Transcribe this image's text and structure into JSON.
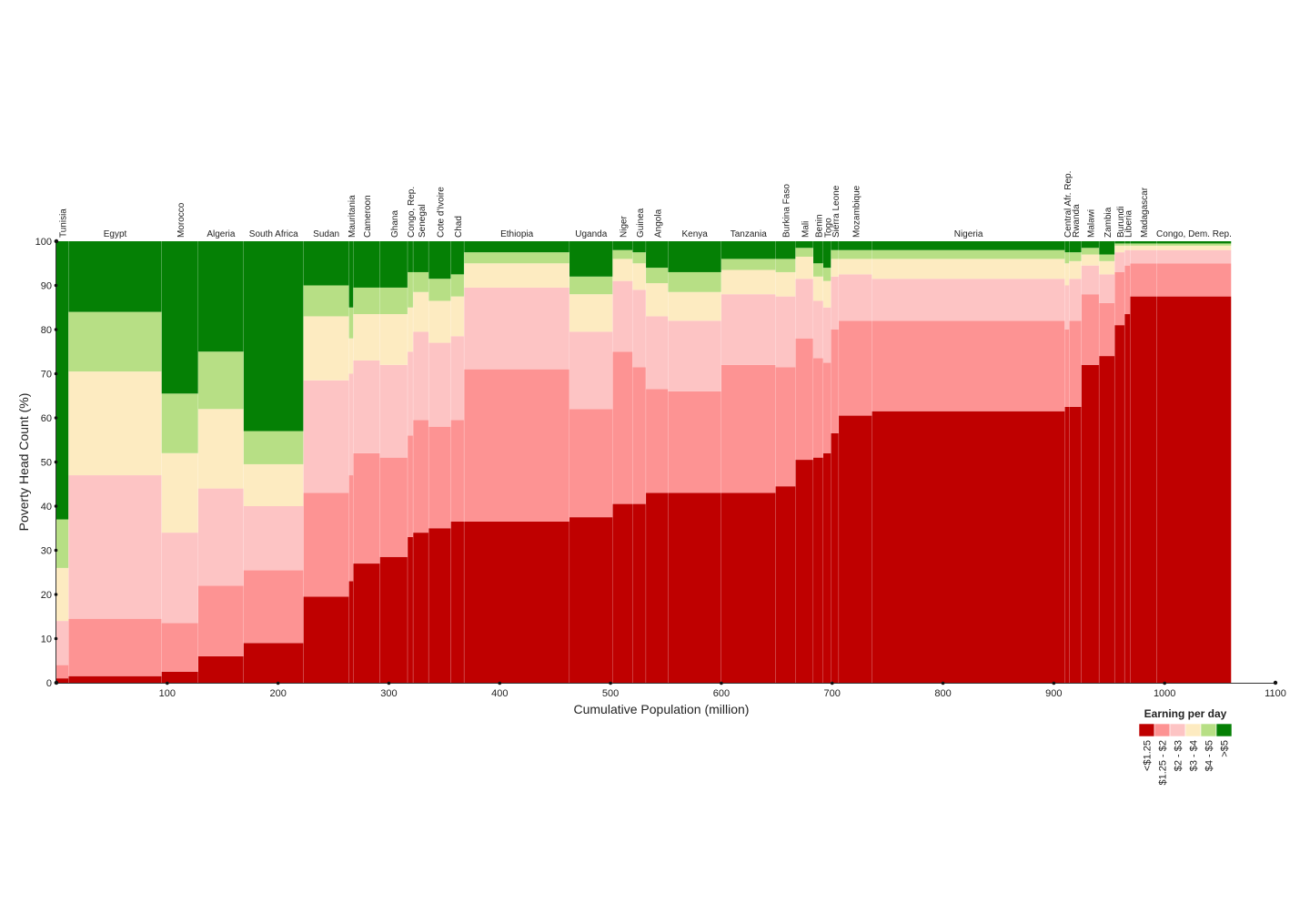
{
  "chart_data": {
    "type": "bar",
    "subtype": "variable-width stacked bar (mosaic)",
    "xlabel": "Cumulative Population (million)",
    "ylabel": "Poverty Head Count (%)",
    "xlim": [
      0,
      1100
    ],
    "ylim": [
      0,
      100
    ],
    "x_ticks": [
      100,
      200,
      300,
      400,
      500,
      600,
      700,
      800,
      900,
      1000,
      1100
    ],
    "y_ticks": [
      0,
      10,
      20,
      30,
      40,
      50,
      60,
      70,
      80,
      90,
      100
    ],
    "grid": false,
    "legend": {
      "title": "Earning per day",
      "position": "bottom-right",
      "labels": [
        "<$1.25",
        "$1.25 - $2",
        "$2 - $3",
        "$3 - $4",
        "$4 - $5",
        ">$5"
      ]
    },
    "colors": [
      "#bf0000",
      "#fd9393",
      "#fdc4c4",
      "#fdebc1",
      "#b7df85",
      "#058005"
    ],
    "series_note": "cumulative boundaries (%) of the first five earning bands; >$5 fills to 100",
    "countries": [
      {
        "name": "Tunisia",
        "start": 0,
        "end": 11,
        "cum": [
          1,
          4,
          14,
          26,
          37
        ],
        "label": "Tunisia",
        "vertical": true
      },
      {
        "name": "Egypt",
        "start": 11,
        "end": 95,
        "cum": [
          1.5,
          14.5,
          47,
          70.5,
          84
        ],
        "label": "Egypt",
        "vertical": false
      },
      {
        "name": "Morocco",
        "start": 95,
        "end": 128,
        "cum": [
          2.5,
          13.5,
          34,
          52,
          65.5
        ],
        "label": "Morocco",
        "vertical": true
      },
      {
        "name": "Algeria",
        "start": 128,
        "end": 169,
        "cum": [
          6,
          22,
          44,
          62,
          75
        ],
        "label": "Algeria",
        "vertical": false
      },
      {
        "name": "South Africa",
        "start": 169,
        "end": 223,
        "cum": [
          9,
          25.5,
          40,
          49.5,
          57
        ],
        "label": "South Africa",
        "vertical": false
      },
      {
        "name": "Sudan",
        "start": 223,
        "end": 264,
        "cum": [
          19.5,
          43,
          68.5,
          83,
          90
        ],
        "label": "Sudan",
        "vertical": false
      },
      {
        "name": "Mauritania",
        "start": 264,
        "end": 268,
        "cum": [
          23,
          47,
          70,
          78,
          85
        ],
        "label": "Mauritania",
        "vertical": true
      },
      {
        "name": "Cameroon",
        "start": 268,
        "end": 292,
        "cum": [
          27,
          52,
          73,
          83.5,
          89.5
        ],
        "label": "Cameroon",
        "vertical": true
      },
      {
        "name": "Ghana",
        "start": 292,
        "end": 317,
        "cum": [
          28.5,
          51,
          72,
          83.5,
          89.5
        ],
        "label": "Ghana",
        "vertical": true
      },
      {
        "name": "Congo, Rep.",
        "start": 317,
        "end": 322,
        "cum": [
          33,
          56,
          75,
          85,
          93
        ],
        "label": "Congo, Rep.",
        "vertical": true
      },
      {
        "name": "Senegal",
        "start": 322,
        "end": 336,
        "cum": [
          34,
          59.5,
          79.5,
          88.5,
          93
        ],
        "label": "Senegal",
        "vertical": true
      },
      {
        "name": "Cote d'Ivoire",
        "start": 336,
        "end": 356,
        "cum": [
          35,
          58,
          77,
          86.5,
          91.5
        ],
        "label": "Cote d'Ivoire",
        "vertical": true
      },
      {
        "name": "Chad",
        "start": 356,
        "end": 368,
        "cum": [
          36.5,
          59.5,
          78.5,
          87.5,
          92.5
        ],
        "label": "Chad",
        "vertical": true
      },
      {
        "name": "Ethiopia",
        "start": 368,
        "end": 463,
        "cum": [
          36.5,
          71,
          89.5,
          95,
          97.5
        ],
        "label": "Ethiopia",
        "vertical": false
      },
      {
        "name": "Uganda",
        "start": 463,
        "end": 502,
        "cum": [
          37.5,
          62,
          79.5,
          88,
          92
        ],
        "label": "Uganda",
        "vertical": false
      },
      {
        "name": "Niger",
        "start": 502,
        "end": 520,
        "cum": [
          40.5,
          75,
          91,
          96,
          98
        ],
        "label": "Niger",
        "vertical": true
      },
      {
        "name": "Guinea",
        "start": 520,
        "end": 532,
        "cum": [
          40.5,
          71.5,
          89,
          95,
          97.5
        ],
        "label": "Guinea",
        "vertical": true
      },
      {
        "name": "Angola",
        "start": 532,
        "end": 552,
        "cum": [
          43,
          66.5,
          83,
          90.5,
          94
        ],
        "label": "Angola",
        "vertical": true
      },
      {
        "name": "Kenya",
        "start": 552,
        "end": 600,
        "cum": [
          43,
          66,
          82,
          88.5,
          93
        ],
        "label": "Kenya",
        "vertical": false
      },
      {
        "name": "Tanzania",
        "start": 600,
        "end": 649,
        "cum": [
          43,
          72,
          88,
          93.5,
          96
        ],
        "label": "Tanzania",
        "vertical": false
      },
      {
        "name": "Burkina Faso",
        "start": 649,
        "end": 667,
        "cum": [
          44.5,
          71.5,
          87.5,
          93,
          96
        ],
        "label": "Burkina Faso",
        "vertical": true
      },
      {
        "name": "Mali",
        "start": 667,
        "end": 683,
        "cum": [
          50.5,
          78,
          91.5,
          96.5,
          98.5
        ],
        "label": "Mali",
        "vertical": true
      },
      {
        "name": "Benin",
        "start": 683,
        "end": 692,
        "cum": [
          51,
          73.5,
          86.5,
          92,
          95
        ],
        "label": "Benin",
        "vertical": true
      },
      {
        "name": "Togo",
        "start": 692,
        "end": 699,
        "cum": [
          52,
          72.5,
          85,
          91,
          94
        ],
        "label": "Togo",
        "vertical": true
      },
      {
        "name": "Sierra Leone",
        "start": 699,
        "end": 706,
        "cum": [
          56.5,
          80,
          92,
          96,
          98
        ],
        "label": "Sierra Leone",
        "vertical": true
      },
      {
        "name": "Mozambique",
        "start": 706,
        "end": 736,
        "cum": [
          60.5,
          82,
          92.5,
          96,
          98
        ],
        "label": "Mozambique",
        "vertical": true
      },
      {
        "name": "Nigeria",
        "start": 736,
        "end": 910,
        "cum": [
          61.5,
          82,
          91.5,
          96,
          98
        ],
        "label": "Nigeria",
        "vertical": false
      },
      {
        "name": "Central Afr. Rep.",
        "start": 910,
        "end": 914,
        "cum": [
          62.5,
          80,
          90,
          95,
          97.5
        ],
        "label": "Central Afr. Rep.",
        "vertical": true
      },
      {
        "name": "Rwanda",
        "start": 914,
        "end": 925,
        "cum": [
          62.5,
          82,
          91.5,
          95.5,
          97.5
        ],
        "label": "Rwanda",
        "vertical": true
      },
      {
        "name": "Malawi",
        "start": 925,
        "end": 941,
        "cum": [
          72,
          88,
          94.5,
          97,
          98.5
        ],
        "label": "Malawi",
        "vertical": true
      },
      {
        "name": "Zambia",
        "start": 941,
        "end": 955,
        "cum": [
          74,
          86,
          92.5,
          95.5,
          97
        ],
        "label": "Zambia",
        "vertical": true
      },
      {
        "name": "Burundi",
        "start": 955,
        "end": 964,
        "cum": [
          81,
          93,
          97.5,
          99,
          99.5
        ],
        "label": "Burundi",
        "vertical": true
      },
      {
        "name": "Liberia",
        "start": 964,
        "end": 969,
        "cum": [
          83.5,
          94.5,
          98,
          99,
          99.5
        ],
        "label": "Liberia",
        "vertical": true
      },
      {
        "name": "Madagascar",
        "start": 969,
        "end": 993,
        "cum": [
          87.5,
          95,
          98,
          99,
          99.5
        ],
        "label": "Madagascar",
        "vertical": true
      },
      {
        "name": "Congo, Dem. Rep.",
        "start": 993,
        "end": 1060,
        "cum": [
          87.5,
          95,
          98,
          99,
          99.5
        ],
        "label": "Congo, Dem. Rep.",
        "vertical": false
      }
    ]
  }
}
